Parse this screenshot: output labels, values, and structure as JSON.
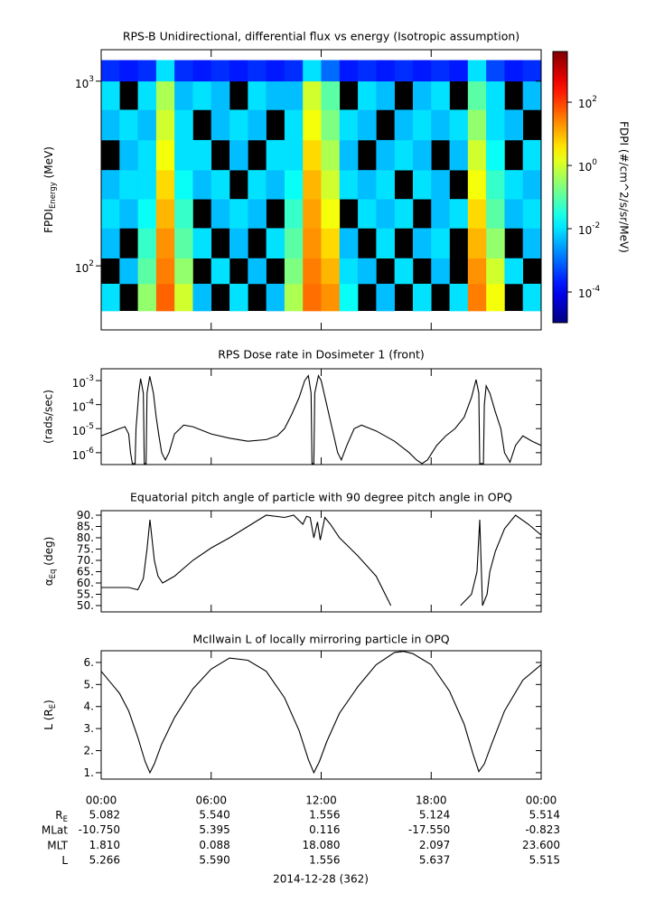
{
  "chart_data": [
    {
      "type": "heatmap",
      "title": "RPS-B  Unidirectional, differential flux vs energy (Isotropic assumption)",
      "ylabel": {
        "text": "FPDI",
        "sub": "Energy",
        "after": " (MeV)"
      },
      "log_y": true,
      "ylim": [
        45,
        1480
      ],
      "yticks": [
        {
          "value": 100,
          "label": "10",
          "exp": "2"
        },
        {
          "value": 1000,
          "label": "10",
          "exp": "3"
        }
      ],
      "x_edges": [
        0,
        1,
        2,
        3,
        4,
        5,
        6,
        7,
        8,
        9,
        10,
        11,
        12,
        13,
        14,
        15,
        16,
        17,
        18,
        19,
        20,
        21,
        22,
        23,
        24
      ],
      "y_edges": [
        57,
        80,
        110,
        160,
        230,
        330,
        480,
        700,
        1000,
        1300
      ],
      "z": [
        [
          0.01,
          null,
          0.3,
          50,
          1,
          0.005,
          null,
          0.01,
          null,
          0.005,
          0.5,
          40,
          20,
          0.02,
          null,
          0.005,
          null,
          0.01,
          null,
          0.01,
          30,
          2,
          null,
          0.01
        ],
        [
          null,
          0.005,
          0.1,
          30,
          0.3,
          null,
          0.01,
          null,
          0.005,
          null,
          0.2,
          30,
          10,
          0.01,
          0.005,
          null,
          0.01,
          null,
          0.005,
          null,
          20,
          1,
          0.01,
          null
        ],
        [
          0.005,
          null,
          0.05,
          20,
          0.1,
          0.01,
          null,
          0.005,
          null,
          0.01,
          0.1,
          20,
          5,
          0.005,
          null,
          0.01,
          null,
          0.005,
          0.01,
          null,
          10,
          0.3,
          null,
          0.005
        ],
        [
          0.01,
          0.005,
          0.02,
          10,
          0.05,
          null,
          0.005,
          0.01,
          0.005,
          null,
          0.05,
          15,
          2,
          null,
          0.01,
          0.005,
          0.01,
          null,
          0.005,
          0.01,
          5,
          0.1,
          0.005,
          0.01
        ],
        [
          0.005,
          0.01,
          0.01,
          5,
          0.02,
          0.005,
          0.01,
          null,
          0.01,
          0.005,
          0.02,
          10,
          1,
          0.01,
          0.005,
          0.01,
          null,
          0.01,
          0.005,
          null,
          2,
          0.05,
          0.01,
          0.005
        ],
        [
          null,
          0.005,
          0.01,
          2,
          0.01,
          0.01,
          null,
          0.005,
          null,
          0.01,
          0.01,
          5,
          0.5,
          0.005,
          null,
          0.005,
          0.01,
          0.005,
          null,
          0.005,
          1,
          0.02,
          null,
          0.01
        ],
        [
          0.005,
          0.01,
          0.005,
          1,
          0.01,
          null,
          0.005,
          0.01,
          0.005,
          null,
          0.01,
          2,
          0.2,
          0.01,
          0.005,
          null,
          0.005,
          0.01,
          0.005,
          0.01,
          0.3,
          0.01,
          0.005,
          null
        ],
        [
          0.01,
          null,
          0.01,
          0.5,
          0.005,
          0.01,
          0.005,
          null,
          0.01,
          0.005,
          0.005,
          1,
          0.1,
          null,
          0.01,
          0.005,
          null,
          0.005,
          0.01,
          null,
          0.1,
          0.01,
          null,
          0.005
        ],
        [
          0.0003,
          0.0002,
          0.0003,
          0.01,
          0.0003,
          0.0002,
          0.0003,
          0.0002,
          0.0003,
          0.0002,
          0.0003,
          0.01,
          0.001,
          0.0002,
          0.0003,
          0.0002,
          0.0003,
          0.0002,
          0.0003,
          0.0002,
          0.01,
          0.0005,
          0.0002,
          0.0003
        ]
      ],
      "log_z": true,
      "zlim": [
        1.07e-05,
        4000
      ],
      "zticks": [
        {
          "value": 0.0001,
          "label": "10",
          "exp": "-4"
        },
        {
          "value": 0.01,
          "label": "10",
          "exp": "-2"
        },
        {
          "value": 1,
          "label": "10",
          "exp": "0"
        },
        {
          "value": 100,
          "label": "10",
          "exp": "2"
        }
      ],
      "zlabel": "FDPI (#/cm^2/s/sr/MeV)"
    },
    {
      "type": "line",
      "title": "RPS  Dose rate in Dosimeter 1 (front)",
      "ylabel": "(rads/sec)",
      "log_y": true,
      "ylim": [
        3.2e-07,
        0.0031
      ],
      "yticks": [
        {
          "value": 0.001,
          "label": "10",
          "exp": "-3"
        },
        {
          "value": 0.0001,
          "label": "10",
          "exp": "-4"
        },
        {
          "value": 1e-05,
          "label": "10",
          "exp": "-5"
        },
        {
          "value": 1e-06,
          "label": "10",
          "exp": "-6"
        }
      ],
      "color": "#000000",
      "x": [
        0,
        0.5,
        1.0,
        1.3,
        1.5,
        1.6,
        1.7,
        1.85,
        1.9,
        2.05,
        2.15,
        2.3,
        2.35,
        2.45,
        2.5,
        2.65,
        2.85,
        3.0,
        3.15,
        3.3,
        3.5,
        3.7,
        4.0,
        4.5,
        5.0,
        6.0,
        7.0,
        8.0,
        9.0,
        9.6,
        10.0,
        10.4,
        10.8,
        11.1,
        11.3,
        11.45,
        11.5,
        11.6,
        11.65,
        11.85,
        12.0,
        12.3,
        12.6,
        12.9,
        13.1,
        13.4,
        13.8,
        14.2,
        15.0,
        16.0,
        16.8,
        17.2,
        17.5,
        17.8,
        18.3,
        18.8,
        19.3,
        19.8,
        20.2,
        20.45,
        20.6,
        20.65,
        20.85,
        20.9,
        21.0,
        21.2,
        21.5,
        21.8,
        22.0,
        22.3,
        22.6,
        23.0,
        23.5,
        24.0
      ],
      "values": [
        5e-06,
        7e-06,
        1e-05,
        1.2e-05,
        6e-06,
        1e-06,
        3.5e-07,
        3.5e-07,
        1e-05,
        0.0003,
        0.0012,
        0.0003,
        3.5e-07,
        3.5e-07,
        0.0003,
        0.0015,
        0.0003,
        3e-05,
        5e-06,
        1e-06,
        5e-07,
        1e-06,
        6e-06,
        1.4e-05,
        1.2e-05,
        6e-06,
        4e-06,
        3e-06,
        3.5e-06,
        5e-06,
        1e-05,
        4e-05,
        0.0002,
        0.001,
        0.0016,
        0.0003,
        3.5e-07,
        3.5e-07,
        0.0003,
        0.0016,
        0.001,
        0.0001,
        1e-05,
        1e-06,
        5e-07,
        2e-06,
        1e-05,
        1.4e-05,
        8e-06,
        3e-06,
        1e-06,
        5e-07,
        3.5e-07,
        5e-07,
        2e-06,
        5e-06,
        1e-05,
        3e-05,
        0.0002,
        0.0011,
        0.0003,
        3.5e-07,
        3.5e-07,
        0.0001,
        0.0006,
        0.0003,
        5e-05,
        1e-05,
        1e-06,
        4e-07,
        2e-06,
        5e-06,
        3e-06,
        2e-06
      ]
    },
    {
      "type": "line",
      "title": "Equatorial pitch angle of particle with 90 degree pitch angle in OPQ",
      "ylabel": {
        "text": "α",
        "sub": "Eq",
        "after": " (deg)"
      },
      "ylim": [
        47.2,
        92
      ],
      "yticks": [
        {
          "value": 90,
          "label": "90."
        },
        {
          "value": 85,
          "label": "85."
        },
        {
          "value": 80,
          "label": "80."
        },
        {
          "value": 75,
          "label": "75."
        },
        {
          "value": 70,
          "label": "70."
        },
        {
          "value": 65,
          "label": "65."
        },
        {
          "value": 60,
          "label": "60."
        },
        {
          "value": 55,
          "label": "55."
        },
        {
          "value": 50,
          "label": "50."
        }
      ],
      "color": "#000000",
      "x": [
        0,
        1.5,
        2.0,
        2.3,
        2.5,
        2.66,
        2.9,
        3.1,
        3.35,
        4.0,
        5.0,
        6.0,
        7.0,
        8.0,
        9.0,
        10.0,
        10.5,
        11.0,
        11.2,
        11.4,
        11.6,
        11.8,
        11.95,
        12.2,
        12.5,
        13.0,
        14.0,
        15.0,
        15.8,
        17.0,
        19.6,
        20.2,
        20.5,
        20.65,
        20.8,
        21.05,
        21.2,
        21.5,
        22.0,
        22.6,
        23.3,
        24.0
      ],
      "values": [
        58,
        58,
        57,
        62,
        75,
        88,
        70,
        63,
        60,
        63,
        70,
        75.5,
        80,
        85,
        90,
        89,
        90,
        86,
        89.5,
        89,
        80,
        87,
        79,
        89,
        86,
        80,
        72,
        63,
        50,
        null,
        50,
        55,
        65,
        88,
        50,
        55,
        65,
        74,
        84,
        90,
        86,
        81.2
      ]
    },
    {
      "type": "line",
      "title": "McIlwain L of locally mirroring particle in OPQ",
      "ylabel": {
        "text": "L (R",
        "sub": "E",
        "after": ")"
      },
      "ylim": [
        0.71,
        6.53
      ],
      "yticks": [
        {
          "value": 1,
          "label": "1."
        },
        {
          "value": 2,
          "label": "2."
        },
        {
          "value": 3,
          "label": "3."
        },
        {
          "value": 4,
          "label": "4."
        },
        {
          "value": 5,
          "label": "5."
        },
        {
          "value": 6,
          "label": "6."
        }
      ],
      "color": "#000000",
      "x": [
        0,
        1,
        1.5,
        2,
        2.4,
        2.66,
        2.9,
        3.3,
        4,
        5,
        6,
        7,
        8,
        9,
        10,
        10.8,
        11.3,
        11.6,
        11.9,
        12.3,
        13,
        14,
        15,
        16,
        16.5,
        17,
        18,
        19,
        19.8,
        20.3,
        20.6,
        20.9,
        21.3,
        22,
        23,
        24
      ],
      "values": [
        5.6,
        4.6,
        3.8,
        2.6,
        1.5,
        1.0,
        1.4,
        2.3,
        3.5,
        4.8,
        5.7,
        6.2,
        6.1,
        5.6,
        4.4,
        2.9,
        1.6,
        1.0,
        1.5,
        2.4,
        3.7,
        4.9,
        5.9,
        6.45,
        6.5,
        6.4,
        5.9,
        4.7,
        3.2,
        1.8,
        1.05,
        1.4,
        2.3,
        3.8,
        5.2,
        5.9
      ]
    }
  ],
  "x_axis": {
    "xlim": [
      0,
      24
    ],
    "xticks": [
      {
        "value": 0,
        "label": "00:00"
      },
      {
        "value": 6,
        "label": "06:00"
      },
      {
        "value": 12,
        "label": "12:00"
      },
      {
        "value": 18,
        "label": "18:00"
      },
      {
        "value": 24,
        "label": "00:00"
      }
    ]
  },
  "ephemeris": {
    "rows": [
      {
        "label": "R",
        "sub": "E",
        "values": [
          "5.082",
          "5.540",
          "1.556",
          "5.124",
          "5.514"
        ]
      },
      {
        "label": "MLat",
        "values": [
          "-10.750",
          "5.395",
          "0.116",
          "-17.550",
          "-0.823"
        ]
      },
      {
        "label": "MLT",
        "values": [
          "1.810",
          "0.088",
          "18.080",
          "2.097",
          "23.600"
        ]
      },
      {
        "label": "L",
        "values": [
          "5.266",
          "5.590",
          "1.556",
          "5.637",
          "5.515"
        ]
      }
    ]
  },
  "date": "2014-12-28 (362)"
}
